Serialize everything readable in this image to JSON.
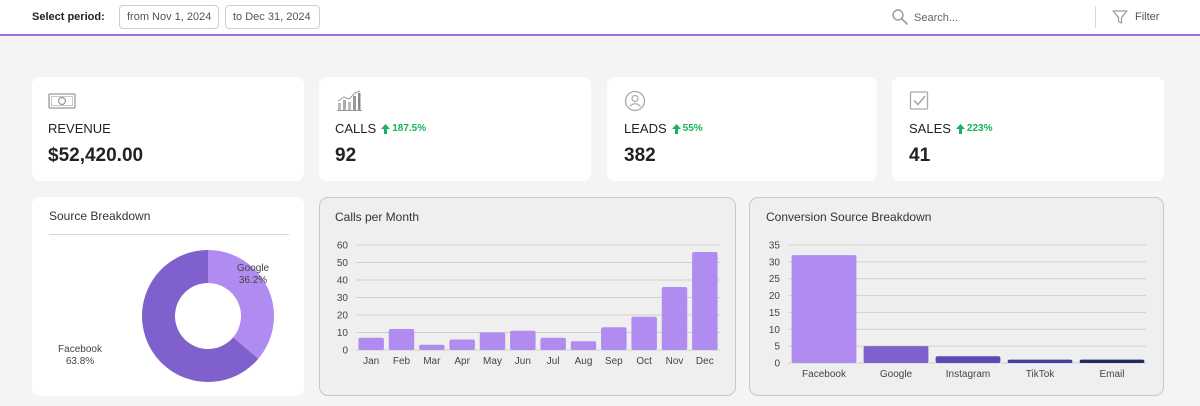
{
  "header": {
    "period_label": "Select period:",
    "date_from": "from Nov 1, 2024",
    "date_to": "to Dec 31, 2024",
    "search_placeholder": "Search...",
    "filter_label": "Filter"
  },
  "kpis": {
    "revenue": {
      "label": "REVENUE",
      "value": "$52,420.00",
      "icon": "money-icon"
    },
    "calls": {
      "label": "CALLS",
      "change": "187.5%",
      "value": "92",
      "icon": "bar-chart-icon"
    },
    "leads": {
      "label": "LEADS",
      "change": "55%",
      "value": "382",
      "icon": "user-icon"
    },
    "sales": {
      "label": "SALES",
      "change": "223%",
      "value": "41",
      "icon": "checkbox-icon"
    }
  },
  "colors": {
    "accent": "#9b72e3",
    "positive": "#18b35c",
    "bar_light": "#b18cf0",
    "bar_mid": "#8060cc",
    "bar_dark": "#5a4bb0",
    "bar_darker": "#44419e",
    "bar_navy": "#1f2a66"
  },
  "chart_data": [
    {
      "type": "pie",
      "title": "Source Breakdown",
      "slices": [
        {
          "label": "Google",
          "value": 36.2,
          "display": "36.2%",
          "color": "#b18cf0"
        },
        {
          "label": "Facebook",
          "value": 63.8,
          "display": "63.8%",
          "color": "#8060cc"
        }
      ]
    },
    {
      "type": "bar",
      "title": "Calls per Month",
      "categories": [
        "Jan",
        "Feb",
        "Mar",
        "Apr",
        "May",
        "Jun",
        "Jul",
        "Aug",
        "Sep",
        "Oct",
        "Nov",
        "Dec"
      ],
      "values": [
        7,
        12,
        3,
        6,
        10,
        11,
        7,
        5,
        13,
        19,
        36,
        56
      ],
      "ylim": [
        0,
        60
      ],
      "yticks": [
        0,
        10,
        20,
        30,
        40,
        50,
        60
      ],
      "grid": true,
      "color": "#b18cf0"
    },
    {
      "type": "bar",
      "title": "Conversion Source Breakdown",
      "categories": [
        "Facebook",
        "Google",
        "Instagram",
        "TikTok",
        "Email"
      ],
      "values": [
        32,
        5,
        2,
        1,
        1
      ],
      "colors": [
        "#b18cf0",
        "#8060cc",
        "#5a4bb0",
        "#44419e",
        "#1f2a66"
      ],
      "ylim": [
        0,
        35
      ],
      "yticks": [
        0,
        5,
        10,
        15,
        20,
        25,
        30,
        35
      ],
      "grid": true
    }
  ]
}
